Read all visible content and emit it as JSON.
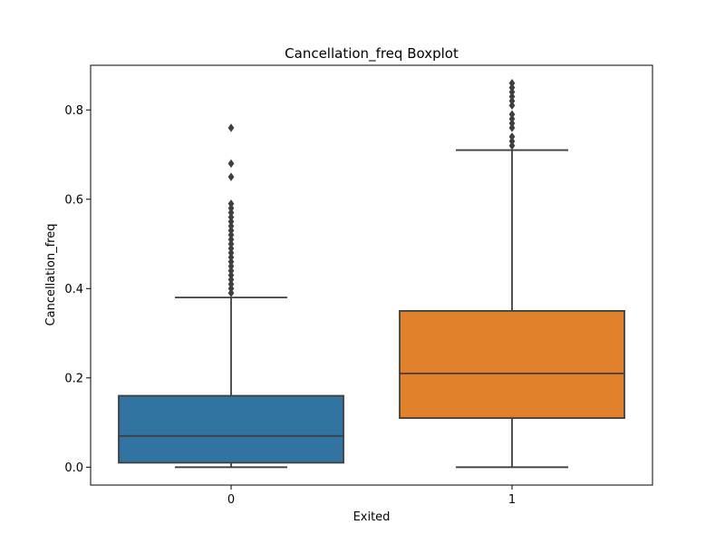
{
  "chart_data": {
    "type": "box",
    "title": "Cancellation_freq Boxplot",
    "xlabel": "Exited",
    "ylabel": "Cancellation_freq",
    "ylim": [
      -0.04,
      0.9
    ],
    "yticks": [
      0.0,
      0.2,
      0.4,
      0.6,
      0.8
    ],
    "ytick_labels": [
      "0.0",
      "0.2",
      "0.4",
      "0.6",
      "0.8"
    ],
    "categories": [
      "0",
      "1"
    ],
    "grid": false,
    "legend": "none",
    "boxes": [
      {
        "category": "0",
        "color": "#3274a1",
        "whisker_low": 0.0,
        "q1": 0.01,
        "median": 0.07,
        "q3": 0.16,
        "whisker_high": 0.38,
        "outliers": [
          0.39,
          0.4,
          0.41,
          0.42,
          0.43,
          0.44,
          0.45,
          0.46,
          0.47,
          0.48,
          0.49,
          0.5,
          0.51,
          0.52,
          0.53,
          0.54,
          0.55,
          0.56,
          0.57,
          0.58,
          0.59,
          0.65,
          0.68,
          0.76
        ]
      },
      {
        "category": "1",
        "color": "#e1812c",
        "whisker_low": 0.0,
        "q1": 0.11,
        "median": 0.21,
        "q3": 0.35,
        "whisker_high": 0.71,
        "outliers": [
          0.72,
          0.73,
          0.74,
          0.76,
          0.77,
          0.78,
          0.79,
          0.81,
          0.82,
          0.83,
          0.84,
          0.85,
          0.86
        ]
      }
    ]
  }
}
